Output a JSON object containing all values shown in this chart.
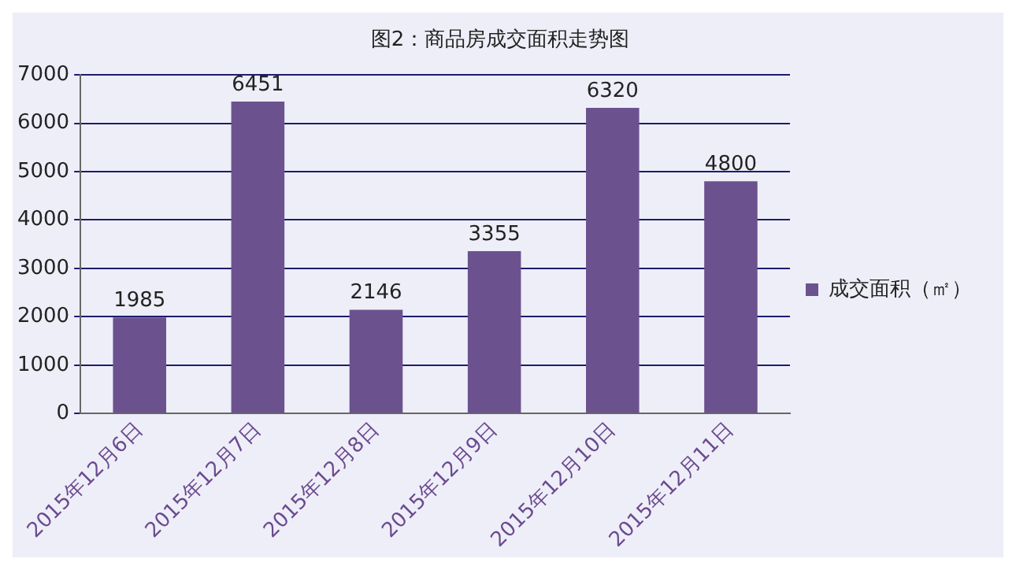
{
  "chart_data": {
    "type": "bar",
    "title": "图2：商品房成交面积走势图",
    "categories": [
      "2015年12月6日",
      "2015年12月7日",
      "2015年12月8日",
      "2015年12月9日",
      "2015年12月10日",
      "2015年12月11日"
    ],
    "series": [
      {
        "name": "成交面积（㎡）",
        "color": "#6b528f",
        "values": [
          1985,
          6451,
          2146,
          3355,
          6320,
          4800
        ]
      }
    ],
    "ylim": [
      0,
      7000
    ],
    "yticks": [
      0,
      1000,
      2000,
      3000,
      4000,
      5000,
      6000,
      7000
    ],
    "grid": "y",
    "legend": "right",
    "data_labels": true
  }
}
